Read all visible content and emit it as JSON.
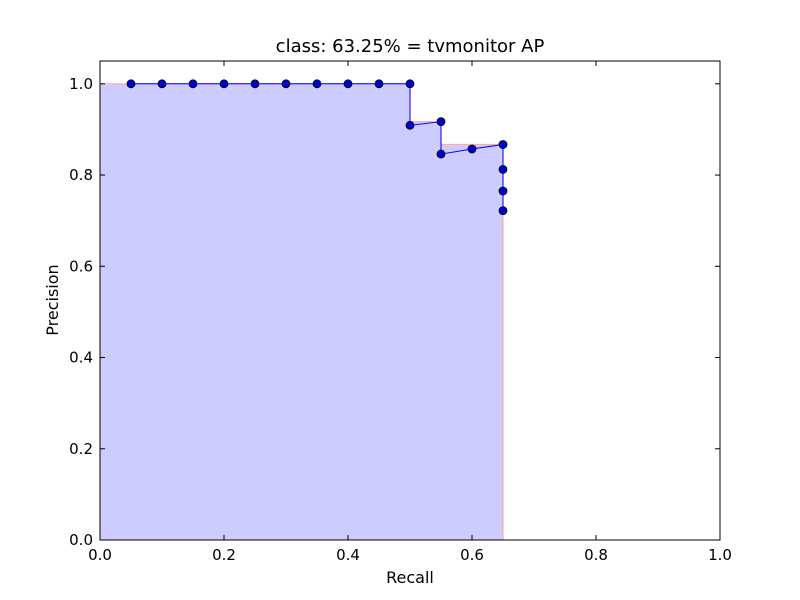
{
  "chart_data": {
    "type": "line",
    "title": "class: 63.25% = tvmonitor AP",
    "xlabel": "Recall",
    "ylabel": "Precision",
    "xlim": [
      0.0,
      1.0
    ],
    "ylim": [
      0.0,
      1.05
    ],
    "x_ticks": [
      0.0,
      0.2,
      0.4,
      0.6,
      0.8,
      1.0
    ],
    "x_tick_labels": [
      "0.0",
      "0.2",
      "0.4",
      "0.6",
      "0.8",
      "1.0"
    ],
    "y_ticks": [
      0.0,
      0.2,
      0.4,
      0.6,
      0.8,
      1.0
    ],
    "y_tick_labels": [
      "0.0",
      "0.2",
      "0.4",
      "0.6",
      "0.8",
      "1.0"
    ],
    "grid": false,
    "legend": "none",
    "series": [
      {
        "kind": "line-markers",
        "color": "#0000ff",
        "marker_color": "#0000cc",
        "points": [
          [
            0.05,
            1.0
          ],
          [
            0.1,
            1.0
          ],
          [
            0.15,
            1.0
          ],
          [
            0.2,
            1.0
          ],
          [
            0.25,
            1.0
          ],
          [
            0.3,
            1.0
          ],
          [
            0.35,
            1.0
          ],
          [
            0.4,
            1.0
          ],
          [
            0.45,
            1.0
          ],
          [
            0.5,
            1.0
          ],
          [
            0.5,
            0.909
          ],
          [
            0.55,
            0.917
          ],
          [
            0.55,
            0.846
          ],
          [
            0.6,
            0.857
          ],
          [
            0.65,
            0.867
          ],
          [
            0.65,
            0.8125
          ],
          [
            0.65,
            0.765
          ],
          [
            0.65,
            0.722
          ]
        ]
      },
      {
        "kind": "area",
        "fill_color": "#ccccff",
        "edge_color": "#ffaaaa",
        "points": [
          [
            0.0,
            1.0
          ],
          [
            0.5,
            1.0
          ],
          [
            0.5,
            0.917
          ],
          [
            0.55,
            0.917
          ],
          [
            0.55,
            0.867
          ],
          [
            0.65,
            0.867
          ],
          [
            0.65,
            0.0
          ]
        ]
      }
    ]
  }
}
